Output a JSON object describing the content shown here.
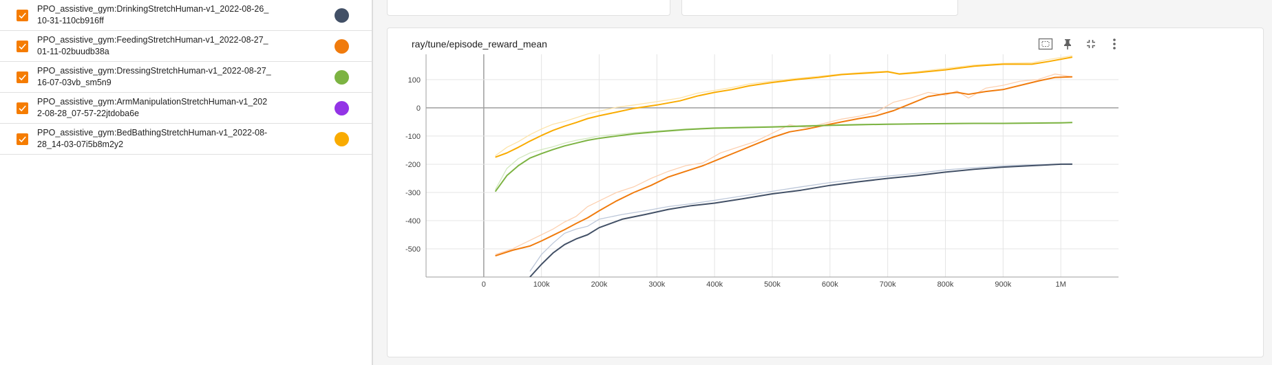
{
  "runs": [
    {
      "name": "PPO_assistive_gym:DrinkingStretchHuman-v1_2022-08-26_10-31-110cb916ff",
      "color": "#425066"
    },
    {
      "name": "PPO_assistive_gym:FeedingStretchHuman-v1_2022-08-27_01-11-02buudb38a",
      "color": "#f07b0d"
    },
    {
      "name": "PPO_assistive_gym:DressingStretchHuman-v1_2022-08-27_16-07-03vb_sm5n9",
      "color": "#7cb342"
    },
    {
      "name": "PPO_assistive_gym:ArmManipulationStretchHuman-v1_2022-08-28_07-57-22jtdoba6e",
      "color": "#9334e6"
    },
    {
      "name": "PPO_assistive_gym:BedBathingStretchHuman-v1_2022-08-28_14-03-07i5b8m2y2",
      "color": "#f9ab00"
    }
  ],
  "card": {
    "title": "ray/tune/episode_reward_mean",
    "tools": [
      "fit-domain-icon",
      "pin-icon",
      "collapse-icon",
      "more-vert-icon"
    ]
  },
  "chart_data": {
    "type": "line",
    "title": "ray/tune/episode_reward_mean",
    "xlim": [
      -100000,
      1100000
    ],
    "ylim": [
      -600,
      190
    ],
    "x_ticks": [
      0,
      100000,
      200000,
      300000,
      400000,
      500000,
      600000,
      700000,
      800000,
      900000,
      1000000
    ],
    "x_tick_labels": [
      "0",
      "100k",
      "200k",
      "300k",
      "400k",
      "500k",
      "600k",
      "700k",
      "800k",
      "900k",
      "1M"
    ],
    "y_ticks": [
      100,
      0,
      -100,
      -200,
      -300,
      -400,
      -500
    ],
    "y_tick_labels": [
      "100",
      "0",
      "-100",
      "-200",
      "-300",
      "-400",
      "-500"
    ],
    "grid": true,
    "series": [
      {
        "name": "PPO_assistive_gym:DrinkingStretchHuman-v1_2022-08-26_10-31-110cb916ff",
        "color": "#425066",
        "raw_color": "#bcc7d9",
        "x": [
          80000,
          100000,
          120000,
          140000,
          160000,
          180000,
          200000,
          240000,
          280000,
          320000,
          360000,
          400000,
          450000,
          500000,
          550000,
          600000,
          650000,
          700000,
          750000,
          800000,
          850000,
          900000,
          950000,
          1000000,
          1020000
        ],
        "y": [
          -600,
          -555,
          -515,
          -485,
          -465,
          -450,
          -425,
          -395,
          -378,
          -360,
          -347,
          -338,
          -322,
          -305,
          -292,
          -275,
          -262,
          -250,
          -240,
          -228,
          -218,
          -210,
          -205,
          -200,
          -200
        ],
        "raw_y": [
          -580,
          -520,
          -480,
          -445,
          -430,
          -420,
          -395,
          -378,
          -365,
          -350,
          -340,
          -328,
          -312,
          -296,
          -280,
          -265,
          -252,
          -242,
          -232,
          -220,
          -212,
          -206,
          -202,
          -199,
          -198
        ]
      },
      {
        "name": "PPO_assistive_gym:FeedingStretchHuman-v1_2022-08-27_01-11-02buudb38a",
        "color": "#f07b0d",
        "raw_color": "#fdd0b0",
        "x": [
          20000,
          50000,
          80000,
          100000,
          120000,
          140000,
          160000,
          180000,
          200000,
          230000,
          260000,
          290000,
          320000,
          350000,
          380000,
          410000,
          440000,
          470000,
          500000,
          530000,
          560000,
          590000,
          620000,
          650000,
          680000,
          710000,
          740000,
          770000,
          800000,
          820000,
          840000,
          870000,
          900000,
          930000,
          960000,
          990000,
          1020000
        ],
        "y": [
          -525,
          -505,
          -490,
          -472,
          -452,
          -432,
          -410,
          -390,
          -365,
          -330,
          -300,
          -275,
          -245,
          -225,
          -205,
          -180,
          -155,
          -130,
          -105,
          -85,
          -75,
          -62,
          -50,
          -38,
          -28,
          -10,
          15,
          40,
          50,
          55,
          48,
          58,
          65,
          80,
          95,
          108,
          110
        ],
        "raw_y": [
          -520,
          -500,
          -470,
          -450,
          -430,
          -405,
          -385,
          -350,
          -330,
          -300,
          -280,
          -250,
          -225,
          -205,
          -195,
          -160,
          -140,
          -120,
          -90,
          -60,
          -70,
          -55,
          -40,
          -30,
          -15,
          20,
          35,
          55,
          45,
          60,
          35,
          70,
          80,
          95,
          100,
          120,
          110
        ]
      },
      {
        "name": "PPO_assistive_gym:DressingStretchHuman-v1_2022-08-27_16-07-03vb_sm5n9",
        "color": "#7cb342",
        "raw_color": "#d2e8bf",
        "x": [
          20000,
          40000,
          60000,
          80000,
          100000,
          120000,
          140000,
          160000,
          180000,
          200000,
          230000,
          260000,
          300000,
          350000,
          400000,
          450000,
          500000,
          550000,
          600000,
          650000,
          700000,
          750000,
          800000,
          850000,
          900000,
          950000,
          1000000,
          1020000
        ],
        "y": [
          -297,
          -240,
          -205,
          -178,
          -162,
          -148,
          -135,
          -125,
          -115,
          -108,
          -100,
          -92,
          -85,
          -77,
          -72,
          -70,
          -68,
          -65,
          -62,
          -60,
          -58,
          -57,
          -56,
          -55,
          -55,
          -54,
          -53,
          -52
        ],
        "raw_y": [
          -290,
          -215,
          -180,
          -160,
          -148,
          -138,
          -125,
          -115,
          -108,
          -100,
          -94,
          -88,
          -82,
          -75,
          -70,
          -68,
          -66,
          -63,
          -60,
          -58,
          -57,
          -56,
          -55,
          -54,
          -54,
          -53,
          -52,
          -51
        ]
      },
      {
        "name": "PPO_assistive_gym:BedBathingStretchHuman-v1_2022-08-28_14-03-07i5b8m2y2",
        "color": "#f9ab00",
        "raw_color": "#fde3a7",
        "x": [
          20000,
          40000,
          60000,
          80000,
          100000,
          120000,
          140000,
          160000,
          180000,
          200000,
          230000,
          260000,
          300000,
          340000,
          370000,
          400000,
          430000,
          460000,
          500000,
          540000,
          580000,
          620000,
          660000,
          700000,
          720000,
          750000,
          800000,
          850000,
          900000,
          950000,
          980000,
          1020000
        ],
        "y": [
          -175,
          -160,
          -140,
          -118,
          -98,
          -80,
          -65,
          -52,
          -38,
          -28,
          -15,
          -2,
          10,
          25,
          42,
          55,
          65,
          78,
          90,
          100,
          108,
          118,
          123,
          128,
          120,
          125,
          135,
          148,
          155,
          155,
          165,
          180
        ],
        "raw_y": [
          -170,
          -140,
          -120,
          -95,
          -75,
          -58,
          -48,
          -35,
          -22,
          -12,
          2,
          10,
          22,
          35,
          52,
          62,
          72,
          85,
          95,
          104,
          112,
          120,
          126,
          130,
          122,
          128,
          140,
          152,
          158,
          160,
          172,
          185
        ]
      }
    ]
  }
}
